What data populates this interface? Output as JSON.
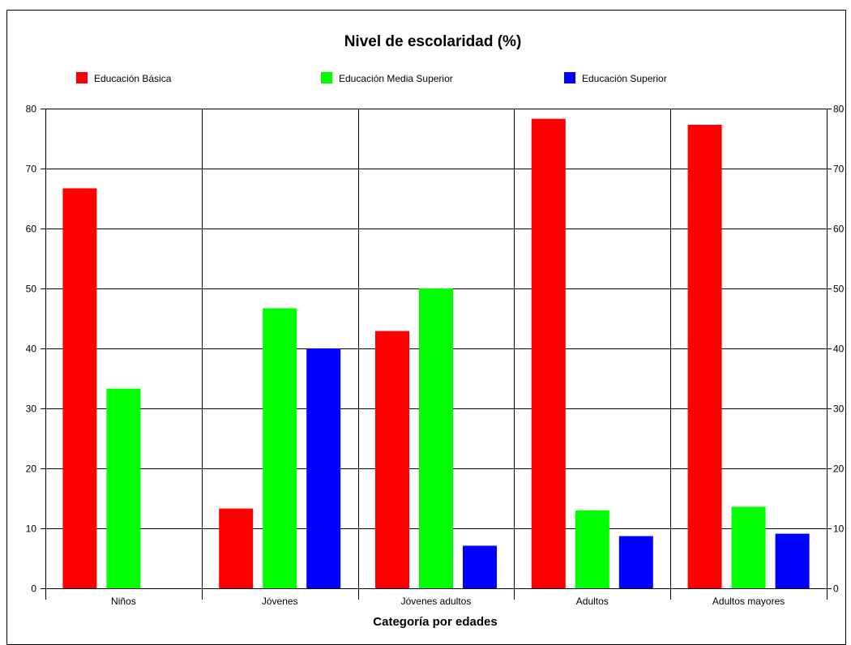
{
  "chart_data": {
    "type": "bar",
    "title": "Nivel de escolaridad (%)",
    "xlabel": "Categoría por edades",
    "ylabel": "",
    "ylim": [
      0,
      80
    ],
    "yticks": [
      0,
      10,
      20,
      30,
      40,
      50,
      60,
      70,
      80
    ],
    "grid": true,
    "legend_position": "top",
    "categories": [
      "Niños",
      "Jóvenes",
      "Jóvenes adultos",
      "Adultos",
      "Adultos mayores"
    ],
    "series": [
      {
        "name": "Educación Básica",
        "color": "#ff0000",
        "values": [
          66.7,
          13.3,
          42.9,
          78.3,
          77.3
        ]
      },
      {
        "name": "Educación Media Superior",
        "color": "#00ff00",
        "values": [
          33.3,
          46.7,
          50.0,
          13.0,
          13.6
        ]
      },
      {
        "name": "Educación Superior",
        "color": "#0000ff",
        "values": [
          0,
          40.0,
          7.1,
          8.7,
          9.1
        ]
      }
    ]
  }
}
